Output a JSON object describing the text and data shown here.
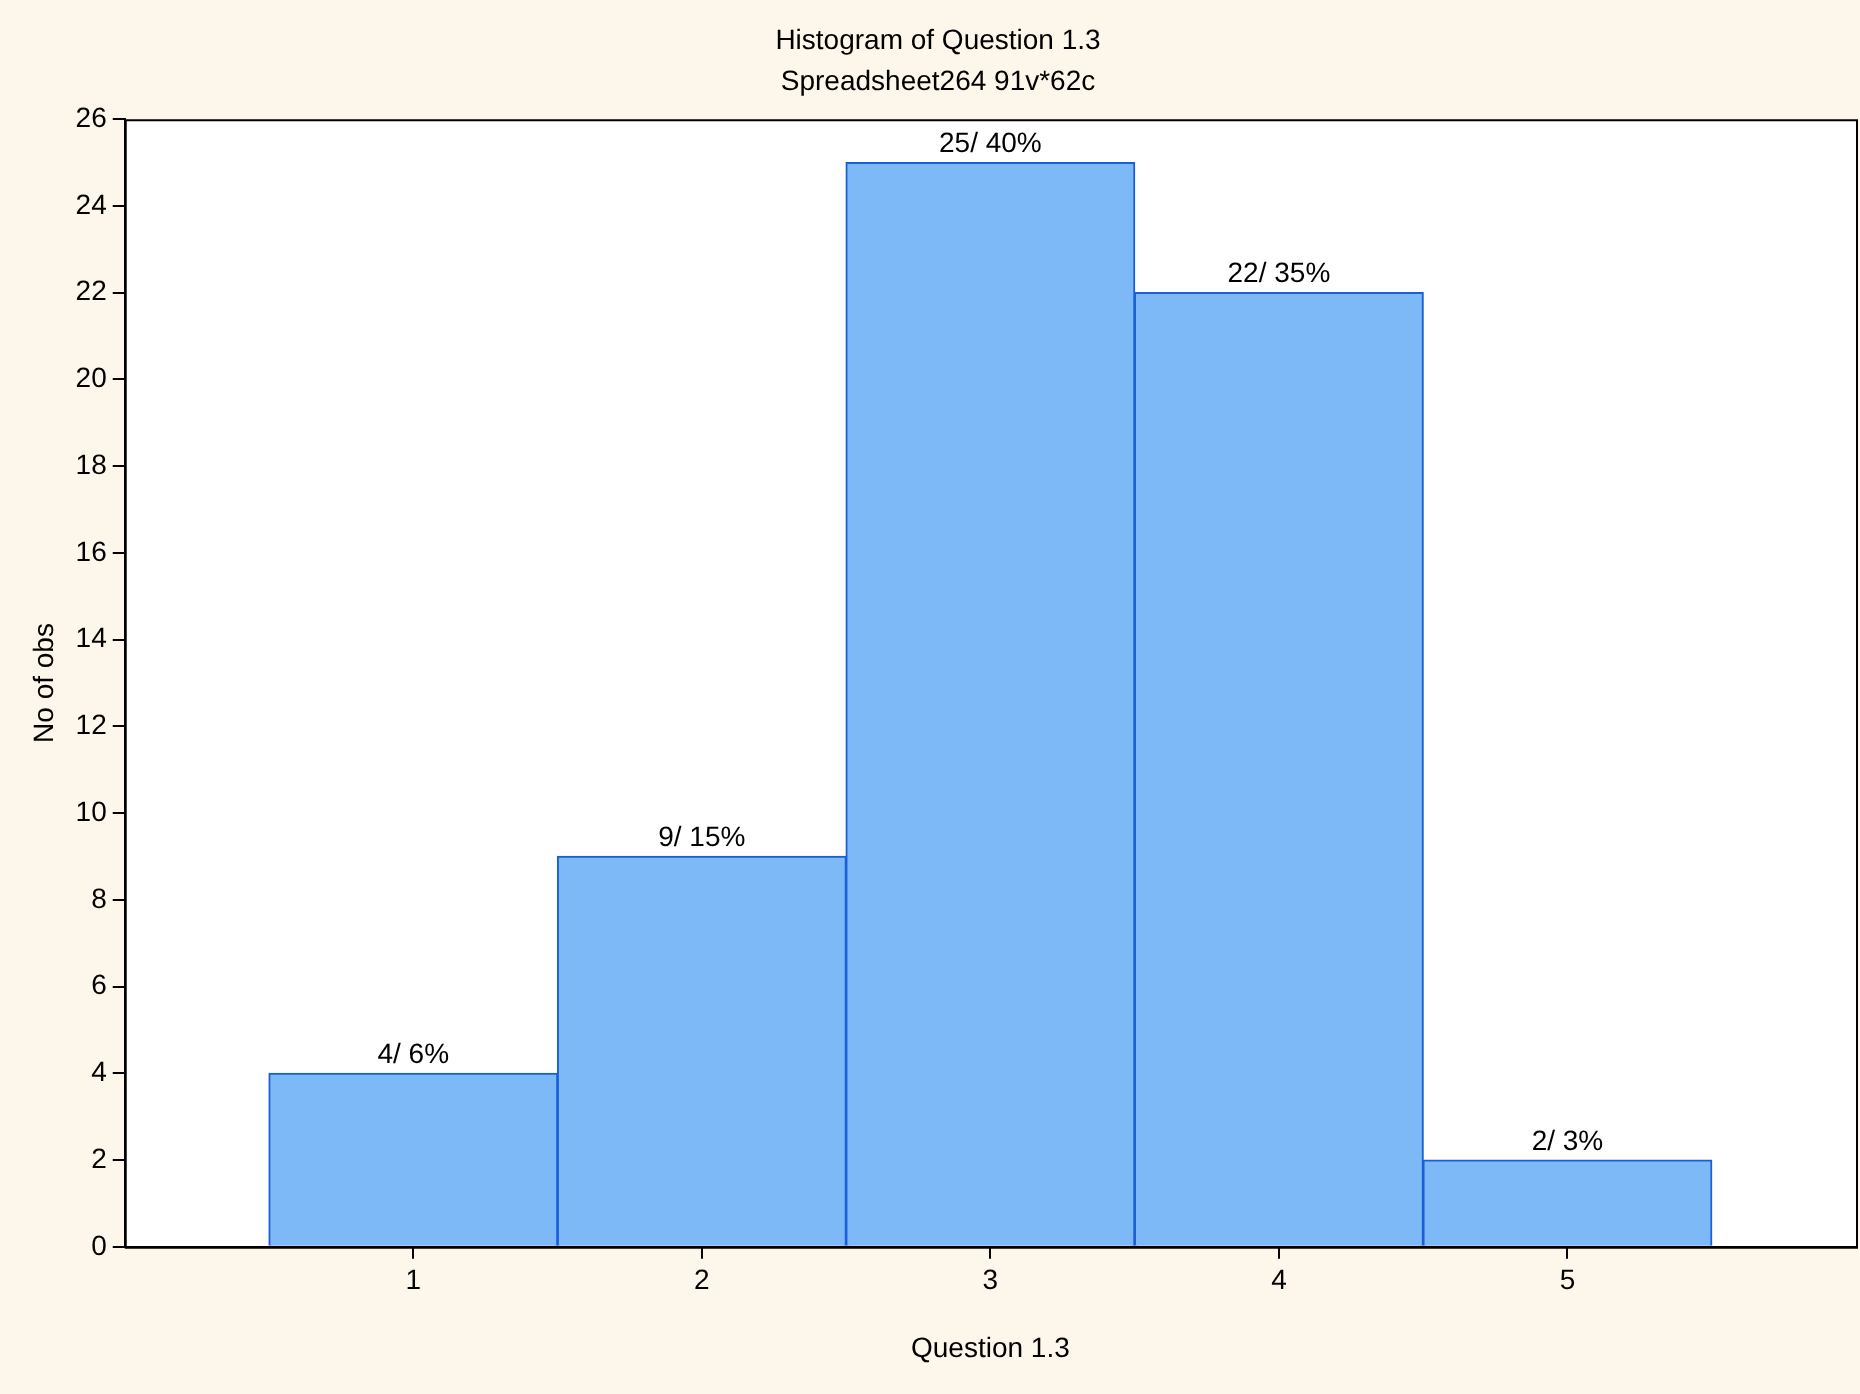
{
  "chart_data": {
    "type": "histogram",
    "title": "Histogram of Question 1.3",
    "subtitle": "Spreadsheet264 91v*62c",
    "xlabel": "Question 1.3",
    "ylabel": "No of obs",
    "bins": [
      0.5,
      1.5,
      2.5,
      3.5,
      4.5,
      5.5
    ],
    "values": [
      4,
      9,
      25,
      22,
      2
    ],
    "value_labels": [
      "4/ 6%",
      "9/ 15%",
      "25/ 40%",
      "22/ 35%",
      "2/ 3%"
    ],
    "color": "#7db9f7",
    "xlim": [
      0,
      6
    ],
    "xticks": [
      1,
      2,
      3,
      4,
      5
    ],
    "ylim": [
      0,
      26
    ],
    "yticks": [
      0,
      2,
      4,
      6,
      8,
      10,
      12,
      14,
      16,
      18,
      20,
      22,
      24,
      26
    ],
    "grid": false,
    "legend": false
  }
}
